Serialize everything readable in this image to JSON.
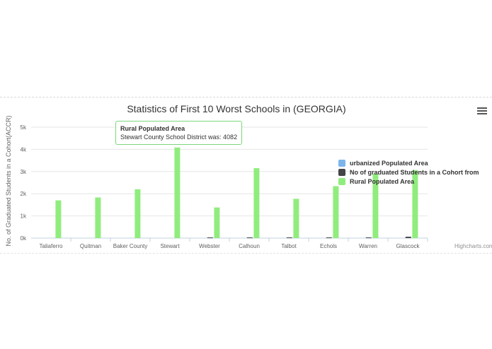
{
  "colors": {
    "urbanized": "#7cb5ec",
    "graduated": "#434348",
    "rural": "#90ed7d"
  },
  "menu_icon": "hamburger-menu-icon",
  "credits": "Highcharts.com",
  "tooltip": {
    "series": "Rural Populated Area",
    "text": "Stewart County School District was: 4082"
  },
  "chart_data": {
    "type": "bar",
    "title": "Statistics of First 10 Worst Schools in (GEORGIA)",
    "xlabel": "",
    "ylabel": "No. of Graduated Students in a Cohort(ACCR)",
    "ylim": [
      0,
      5000
    ],
    "yticks": [
      0,
      1000,
      2000,
      3000,
      4000,
      5000
    ],
    "ytick_labels": [
      "0k",
      "1k",
      "2k",
      "3k",
      "4k",
      "5k"
    ],
    "grid": true,
    "legend": "right",
    "categories": [
      "Taliaferro",
      "Quitman",
      "Baker County",
      "Stewart",
      "Webster",
      "Calhoun",
      "Talbot",
      "Echols",
      "Warren",
      "Glascock"
    ],
    "series": [
      {
        "name": "urbanized Populated Area",
        "color": "#7cb5ec",
        "values": [
          0,
          0,
          0,
          0,
          0,
          0,
          0,
          0,
          0,
          0
        ]
      },
      {
        "name": "No of graduated Students in a Cohort from",
        "color": "#434348",
        "values": [
          0,
          0,
          0,
          0,
          30,
          30,
          30,
          30,
          30,
          60
        ]
      },
      {
        "name": "Rural Populated Area",
        "color": "#90ed7d",
        "values": [
          1700,
          1830,
          2200,
          4082,
          1380,
          3150,
          1770,
          2340,
          2900,
          3060
        ]
      }
    ]
  }
}
